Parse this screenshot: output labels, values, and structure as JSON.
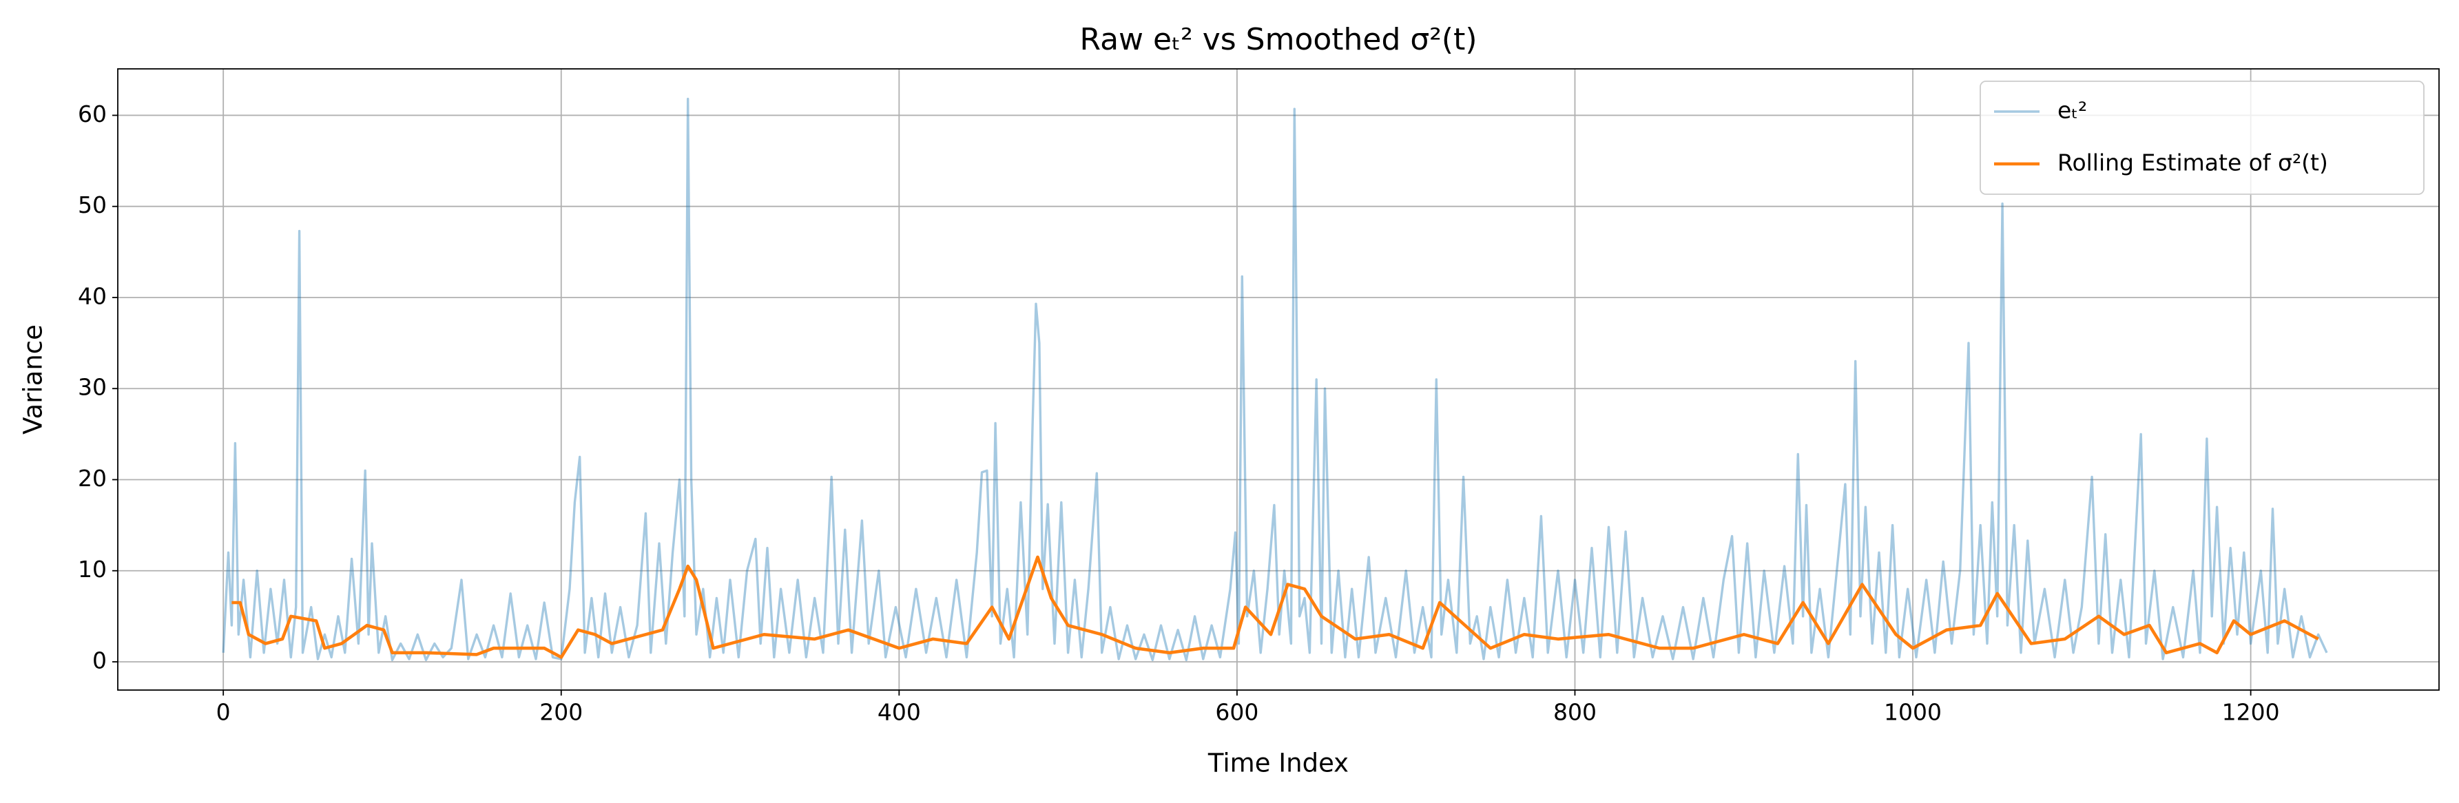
{
  "chart_data": {
    "type": "line",
    "title": "Raw eₜ² vs Smoothed σ²(t)",
    "x_label": "Time Index",
    "y_label": "Variance",
    "xlim": [
      -62.45,
      1311.45
    ],
    "ylim": [
      -3.1,
      65.1
    ],
    "xticks": [
      0,
      200,
      400,
      600,
      800,
      1000,
      1200
    ],
    "yticks": [
      0,
      10,
      20,
      30,
      40,
      50,
      60
    ],
    "grid": true,
    "legend": "upper right",
    "series": [
      {
        "name": "eₜ²",
        "color": "#1f77b4",
        "opacity": 0.4,
        "x": [
          0,
          3,
          5,
          7,
          9,
          12,
          16,
          20,
          24,
          28,
          32,
          36,
          40,
          43,
          45,
          47,
          52,
          56,
          60,
          64,
          68,
          72,
          76,
          80,
          84,
          86,
          88,
          92,
          96,
          100,
          105,
          110,
          115,
          120,
          125,
          130,
          135,
          141,
          145,
          150,
          155,
          160,
          165,
          170,
          175,
          180,
          185,
          190,
          195,
          200,
          205,
          208,
          211,
          214,
          218,
          222,
          226,
          230,
          235,
          240,
          245,
          250,
          253,
          258,
          262,
          266,
          270,
          273,
          275,
          277,
          280,
          284,
          288,
          292,
          296,
          300,
          305,
          310,
          315,
          318,
          322,
          326,
          330,
          335,
          340,
          345,
          350,
          355,
          360,
          364,
          368,
          372,
          378,
          382,
          388,
          392,
          398,
          404,
          410,
          416,
          422,
          428,
          434,
          440,
          446,
          449,
          452,
          455,
          457,
          460,
          464,
          468,
          472,
          476,
          479,
          481,
          483,
          485,
          488,
          492,
          496,
          500,
          504,
          508,
          512,
          517,
          520,
          525,
          530,
          535,
          540,
          545,
          550,
          555,
          560,
          565,
          570,
          575,
          580,
          585,
          590,
          596,
          599,
          601,
          603,
          606,
          610,
          614,
          618,
          622,
          625,
          628,
          632,
          634,
          637,
          640,
          643,
          647,
          650,
          652,
          656,
          660,
          664,
          668,
          672,
          678,
          682,
          688,
          694,
          700,
          705,
          710,
          715,
          718,
          721,
          725,
          730,
          734,
          738,
          742,
          746,
          750,
          755,
          760,
          765,
          770,
          775,
          780,
          784,
          790,
          795,
          800,
          805,
          810,
          815,
          820,
          825,
          830,
          835,
          840,
          846,
          852,
          858,
          864,
          870,
          876,
          882,
          888,
          893,
          897,
          902,
          907,
          912,
          918,
          924,
          929,
          932,
          935,
          937,
          940,
          945,
          950,
          955,
          960,
          963,
          966,
          969,
          972,
          976,
          980,
          984,
          988,
          992,
          997,
          1002,
          1008,
          1013,
          1018,
          1023,
          1028,
          1033,
          1036,
          1040,
          1044,
          1047,
          1050,
          1053,
          1056,
          1060,
          1064,
          1068,
          1072,
          1078,
          1084,
          1090,
          1095,
          1100,
          1106,
          1110,
          1114,
          1118,
          1123,
          1128,
          1135,
          1138,
          1143,
          1148,
          1154,
          1160,
          1166,
          1170,
          1174,
          1177,
          1180,
          1184,
          1188,
          1192,
          1196,
          1200,
          1206,
          1210,
          1213,
          1216,
          1220,
          1225,
          1230,
          1235,
          1240,
          1245
        ],
        "values": [
          1,
          12,
          4,
          24,
          3,
          9,
          0.5,
          10,
          1,
          8,
          2,
          9,
          0.5,
          6,
          47.3,
          1,
          6,
          0.3,
          3,
          0.5,
          5,
          1,
          11.3,
          2,
          21,
          3,
          13,
          1,
          5,
          0.2,
          2,
          0.3,
          3,
          0.2,
          2,
          0.5,
          1.5,
          9,
          0.3,
          3,
          0.5,
          4,
          0.5,
          7.5,
          0.5,
          4,
          0.3,
          6.5,
          0.5,
          0.3,
          8,
          17.5,
          22.5,
          1,
          7,
          0.5,
          7.5,
          1,
          6,
          0.5,
          4,
          16.3,
          1,
          13,
          2,
          12,
          20,
          5,
          61.8,
          20,
          3,
          8,
          0.5,
          7,
          1,
          9,
          0.5,
          10,
          13.5,
          2,
          12.5,
          0.5,
          8,
          1,
          9,
          0.5,
          7,
          1,
          20.3,
          2,
          14.5,
          1,
          15.5,
          2,
          10,
          0.5,
          6,
          0.5,
          8,
          1,
          7,
          0.5,
          9,
          0.5,
          12,
          20.8,
          21,
          5,
          26.2,
          2,
          8,
          0.5,
          17.5,
          3,
          26,
          39.3,
          35,
          8,
          17.3,
          2,
          17.5,
          1,
          9,
          0.5,
          8,
          20.7,
          1,
          6,
          0.3,
          4,
          0.3,
          3,
          0.2,
          4,
          0.3,
          3.5,
          0.2,
          5,
          0.3,
          4,
          0.5,
          8,
          14.2,
          2,
          42.3,
          5,
          10,
          1,
          8,
          17.2,
          3,
          10,
          2,
          60.7,
          5,
          7,
          1,
          31,
          2,
          30,
          1,
          10,
          0.5,
          8,
          0.5,
          11.5,
          1,
          7,
          0.5,
          10,
          1,
          6,
          0.5,
          31,
          3,
          9,
          1,
          20.3,
          2,
          5,
          0.3,
          6,
          0.5,
          9,
          1,
          7,
          0.5,
          16,
          1,
          10,
          0.5,
          9,
          1,
          12.5,
          0.5,
          14.8,
          1,
          14.3,
          0.5,
          7,
          0.5,
          5,
          0.3,
          6,
          0.3,
          7,
          0.5,
          9,
          13.8,
          1,
          13,
          0.5,
          10,
          1,
          10.5,
          2,
          22.8,
          5,
          17.2,
          1,
          8,
          0.5,
          10,
          19.5,
          3,
          33,
          5,
          17,
          2,
          12,
          1,
          15,
          0.5,
          8,
          0.5,
          9,
          1,
          11,
          2,
          10,
          35,
          3,
          15,
          2,
          17.5,
          5,
          50.3,
          4,
          15,
          1,
          13.3,
          2,
          8,
          0.5,
          9,
          1,
          6,
          20.3,
          2,
          14,
          1,
          9,
          0.5,
          25,
          2,
          10,
          0.3,
          6,
          0.5,
          10,
          1,
          24.5,
          5,
          17,
          2,
          12.5,
          3,
          12,
          2,
          10,
          1,
          16.8,
          2,
          8,
          0.5,
          5,
          0.5,
          3,
          1
        ]
      },
      {
        "name": "Rolling Estimate of σ²(t)",
        "color": "#ff7f0e",
        "opacity": 1,
        "x": [
          5,
          10,
          15,
          25,
          35,
          40,
          55,
          60,
          70,
          85,
          95,
          100,
          120,
          150,
          160,
          190,
          200,
          210,
          220,
          230,
          250,
          260,
          270,
          275,
          280,
          290,
          320,
          350,
          370,
          400,
          420,
          440,
          455,
          465,
          482,
          490,
          500,
          520,
          540,
          560,
          580,
          598,
          605,
          620,
          630,
          640,
          650,
          670,
          690,
          710,
          720,
          735,
          750,
          770,
          790,
          820,
          850,
          870,
          900,
          920,
          935,
          950,
          970,
          990,
          1000,
          1020,
          1040,
          1050,
          1070,
          1090,
          1110,
          1125,
          1140,
          1150,
          1170,
          1180,
          1190,
          1200,
          1220,
          1240
        ],
        "values": [
          6.5,
          6.5,
          3,
          2,
          2.5,
          5,
          4.5,
          1.5,
          2,
          4,
          3.5,
          1,
          1,
          0.8,
          1.5,
          1.5,
          0.5,
          3.5,
          3,
          2,
          3,
          3.5,
          8,
          10.5,
          9,
          1.5,
          3,
          2.5,
          3.5,
          1.5,
          2.5,
          2,
          6,
          2.5,
          11.5,
          7,
          4,
          3,
          1.5,
          1,
          1.5,
          1.5,
          6,
          3,
          8.5,
          8,
          5,
          2.5,
          3,
          1.5,
          6.5,
          4,
          1.5,
          3,
          2.5,
          3,
          1.5,
          1.5,
          3,
          2,
          6.5,
          2,
          8.5,
          3,
          1.5,
          3.5,
          4,
          7.5,
          2,
          2.5,
          5,
          3,
          4,
          1,
          2,
          1,
          4.5,
          3,
          4.5,
          2.5
        ]
      }
    ]
  }
}
